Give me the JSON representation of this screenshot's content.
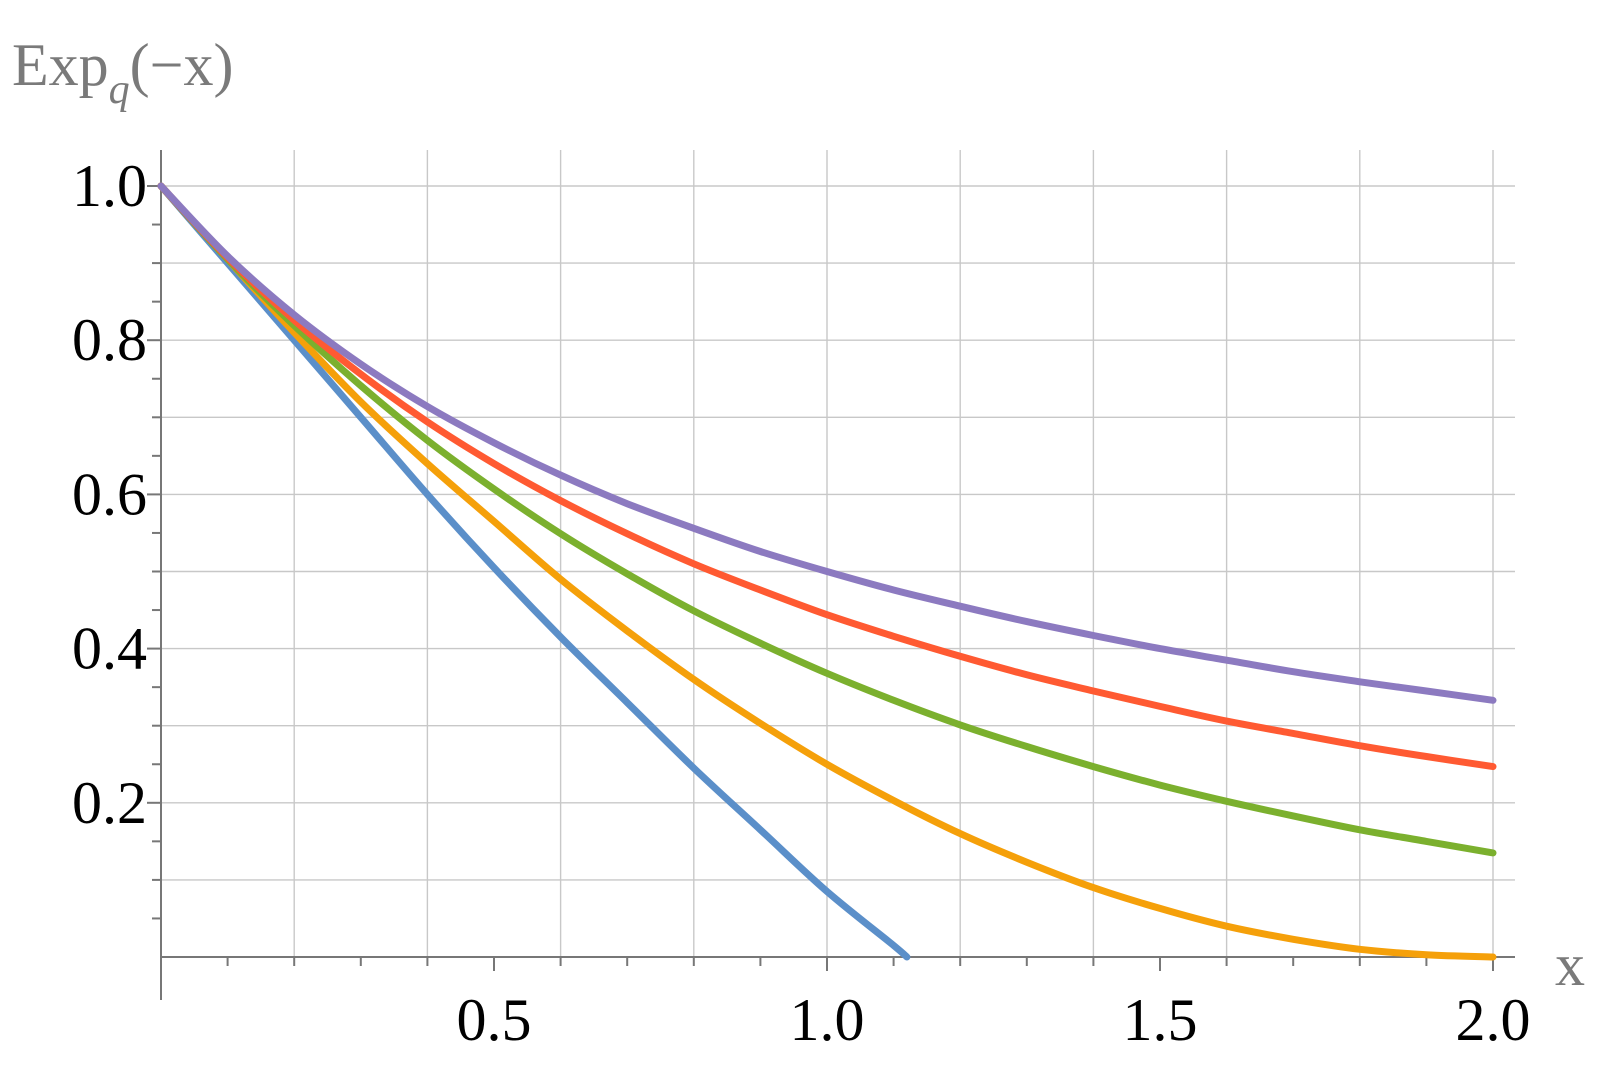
{
  "chart_data": {
    "type": "line",
    "ylabel_main": "Exp",
    "ylabel_sub": "q",
    "ylabel_arg": "(−x)",
    "xlabel": "x",
    "xlim": [
      0,
      2.0
    ],
    "ylim": [
      0,
      1.0
    ],
    "grid": true,
    "x_ticks": [
      {
        "value": 0.5,
        "label": "0.5"
      },
      {
        "value": 1.0,
        "label": "1.0"
      },
      {
        "value": 1.5,
        "label": "1.5"
      },
      {
        "value": 2.0,
        "label": "2.0"
      }
    ],
    "y_ticks": [
      {
        "value": 0.2,
        "label": "0.2"
      },
      {
        "value": 0.4,
        "label": "0.4"
      },
      {
        "value": 0.6,
        "label": "0.6"
      },
      {
        "value": 0.8,
        "label": "0.8"
      },
      {
        "value": 1.0,
        "label": "1.0"
      }
    ],
    "x_grid": [
      0.2,
      0.4,
      0.6,
      0.8,
      1.0,
      1.2,
      1.4,
      1.6,
      1.8,
      2.0
    ],
    "y_grid": [
      0.1,
      0.2,
      0.3,
      0.4,
      0.5,
      0.6,
      0.7,
      0.8,
      0.9,
      1.0
    ],
    "series": [
      {
        "color": "#5b8fc9",
        "x": [
          0,
          0.1,
          0.2,
          0.3,
          0.4,
          0.5,
          0.6,
          0.7,
          0.8,
          0.9,
          1.0,
          1.1,
          1.12
        ],
        "y": [
          1.0,
          0.9,
          0.8,
          0.7,
          0.6,
          0.505,
          0.415,
          0.33,
          0.245,
          0.165,
          0.085,
          0.015,
          0.0
        ]
      },
      {
        "color": "#f5a00a",
        "x": [
          0,
          0.1,
          0.2,
          0.3,
          0.4,
          0.5,
          0.6,
          0.7,
          0.8,
          0.9,
          1.0,
          1.1,
          1.2,
          1.3,
          1.4,
          1.5,
          1.6,
          1.7,
          1.8,
          1.9,
          2.0
        ],
        "y": [
          1.0,
          0.905,
          0.81,
          0.72,
          0.64,
          0.565,
          0.49,
          0.423,
          0.36,
          0.303,
          0.25,
          0.203,
          0.16,
          0.123,
          0.09,
          0.063,
          0.04,
          0.023,
          0.01,
          0.003,
          0.0
        ]
      },
      {
        "color": "#7bb02e",
        "x": [
          0,
          0.1,
          0.2,
          0.3,
          0.4,
          0.5,
          0.6,
          0.7,
          0.8,
          0.9,
          1.0,
          1.1,
          1.2,
          1.3,
          1.4,
          1.5,
          1.6,
          1.7,
          1.8,
          1.9,
          2.0
        ],
        "y": [
          1.0,
          0.905,
          0.819,
          0.741,
          0.67,
          0.607,
          0.549,
          0.497,
          0.449,
          0.407,
          0.368,
          0.333,
          0.301,
          0.273,
          0.247,
          0.223,
          0.202,
          0.183,
          0.165,
          0.15,
          0.135
        ]
      },
      {
        "color": "#ff5a32",
        "x": [
          0,
          0.1,
          0.2,
          0.3,
          0.4,
          0.5,
          0.6,
          0.7,
          0.8,
          0.9,
          1.0,
          1.1,
          1.2,
          1.3,
          1.4,
          1.5,
          1.6,
          1.7,
          1.8,
          1.9,
          2.0
        ],
        "y": [
          1.0,
          0.907,
          0.826,
          0.756,
          0.694,
          0.64,
          0.592,
          0.549,
          0.51,
          0.476,
          0.444,
          0.416,
          0.39,
          0.366,
          0.345,
          0.325,
          0.306,
          0.29,
          0.274,
          0.26,
          0.247
        ]
      },
      {
        "color": "#8c7ac0",
        "x": [
          0,
          0.1,
          0.2,
          0.3,
          0.4,
          0.5,
          0.6,
          0.7,
          0.8,
          0.9,
          1.0,
          1.1,
          1.2,
          1.3,
          1.4,
          1.5,
          1.6,
          1.7,
          1.8,
          1.9,
          2.0
        ],
        "y": [
          1.0,
          0.909,
          0.833,
          0.769,
          0.714,
          0.667,
          0.625,
          0.588,
          0.556,
          0.526,
          0.5,
          0.476,
          0.455,
          0.435,
          0.417,
          0.4,
          0.385,
          0.37,
          0.357,
          0.345,
          0.333
        ]
      }
    ]
  }
}
